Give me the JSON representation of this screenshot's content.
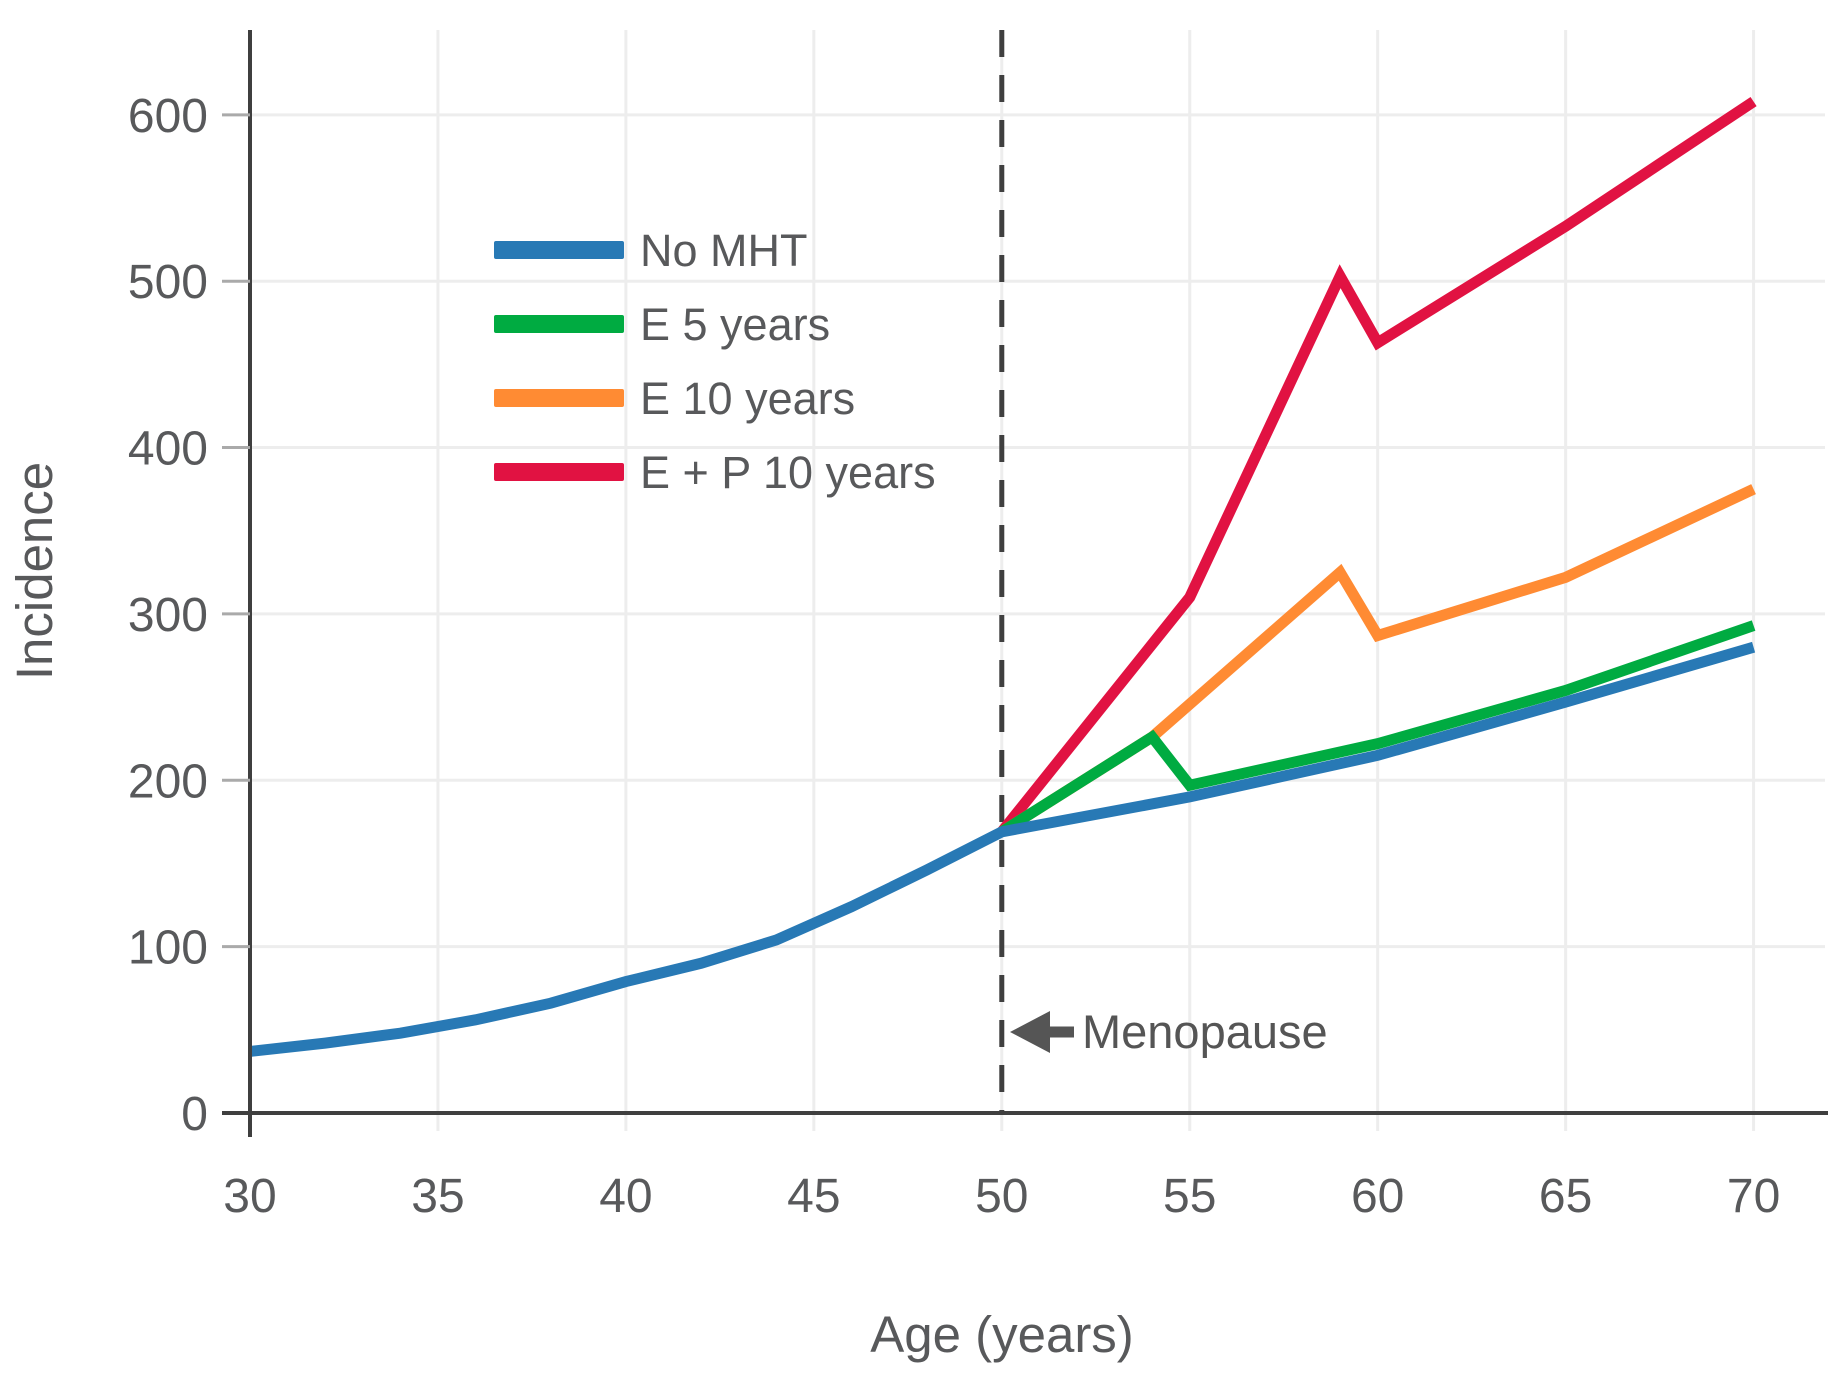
{
  "figure": {
    "background": "#ffffff",
    "text_color": "#58595b",
    "axis_color": "#3f3f3f",
    "grid_color": "#ededed",
    "tick_mark_color": "#aaaaaa",
    "annotation_color": "#555555"
  },
  "chart_data": {
    "type": "line",
    "title": "",
    "xlabel": "Age (years)",
    "ylabel": "Incidence",
    "xlim": [
      30,
      71.9
    ],
    "ylim": [
      0,
      651
    ],
    "x_ticks": [
      30,
      35,
      40,
      45,
      50,
      55,
      60,
      65,
      70
    ],
    "y_ticks": [
      0,
      100,
      200,
      300,
      400,
      500,
      600
    ],
    "grid": true,
    "legend_position": "upper-left-inside",
    "menopause_line": {
      "x": 50,
      "style": "dashed",
      "annotation": "Menopause"
    },
    "series": [
      {
        "name": "No MHT",
        "color": "#2879b5",
        "points": [
          [
            30,
            37
          ],
          [
            32,
            42
          ],
          [
            34,
            48
          ],
          [
            36,
            56
          ],
          [
            38,
            66
          ],
          [
            40,
            79
          ],
          [
            42,
            90
          ],
          [
            44,
            104
          ],
          [
            46,
            124
          ],
          [
            48,
            146
          ],
          [
            50,
            169
          ],
          [
            55,
            190
          ],
          [
            60,
            215
          ],
          [
            65,
            247
          ],
          [
            70,
            280
          ]
        ]
      },
      {
        "name": "E 5 years",
        "color": "#00ab41",
        "points": [
          [
            50,
            169
          ],
          [
            54,
            226
          ],
          [
            55,
            197
          ],
          [
            60,
            222
          ],
          [
            65,
            254
          ],
          [
            70,
            293
          ]
        ]
      },
      {
        "name": "E 10 years",
        "color": "#ff8b33",
        "points": [
          [
            50,
            169
          ],
          [
            54,
            226
          ],
          [
            59,
            325
          ],
          [
            60,
            287
          ],
          [
            65,
            322
          ],
          [
            70,
            375
          ]
        ]
      },
      {
        "name": "E + P 10 years",
        "color": "#e11242",
        "points": [
          [
            50,
            169
          ],
          [
            55,
            310
          ],
          [
            59,
            503
          ],
          [
            60,
            463
          ],
          [
            65,
            533
          ],
          [
            70,
            608
          ]
        ]
      }
    ]
  }
}
